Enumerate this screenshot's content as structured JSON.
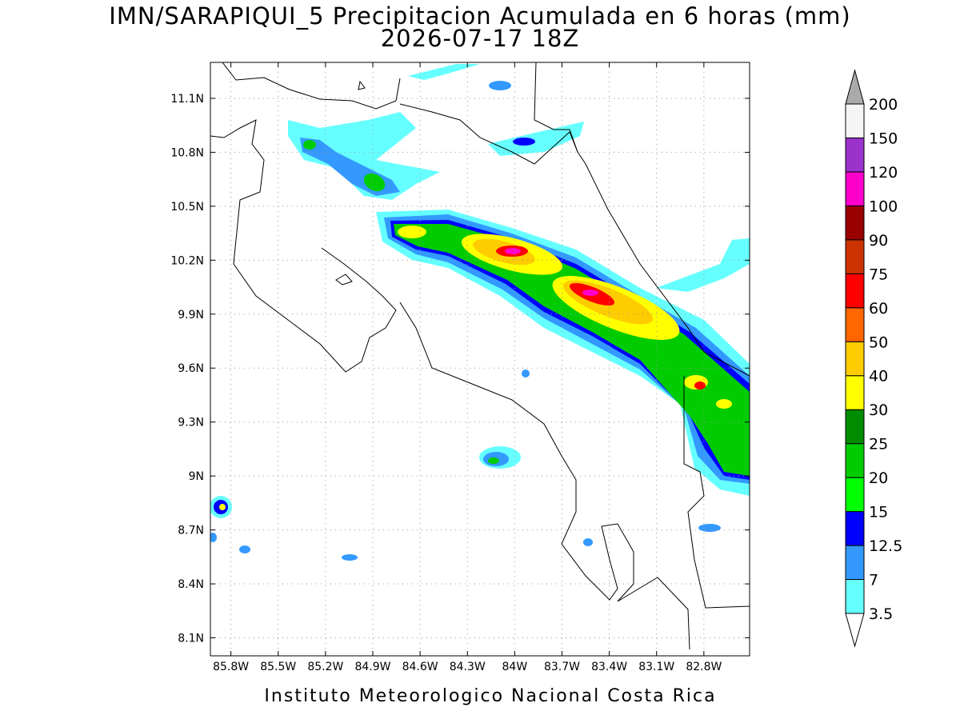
{
  "title": "IMN/SARAPIQUI_5 Precipitacion Acumulada en 6 horas (mm)",
  "subtitle": "2026-07-17 18Z",
  "footer": "Instituto Meteorologico Nacional Costa Rica",
  "map": {
    "xlim": [
      -85.93,
      -82.51
    ],
    "ylim": [
      8.0,
      11.3
    ],
    "grid": true,
    "xticks": [
      {
        "value": -85.8,
        "label": "85.8W"
      },
      {
        "value": -85.5,
        "label": "85.5W"
      },
      {
        "value": -85.2,
        "label": "85.2W"
      },
      {
        "value": -84.9,
        "label": "84.9W"
      },
      {
        "value": -84.6,
        "label": "84.6W"
      },
      {
        "value": -84.3,
        "label": "84.3W"
      },
      {
        "value": -84.0,
        "label": "84W"
      },
      {
        "value": -83.7,
        "label": "83.7W"
      },
      {
        "value": -83.4,
        "label": "83.4W"
      },
      {
        "value": -83.1,
        "label": "83.1W"
      },
      {
        "value": -82.8,
        "label": "82.8W"
      }
    ],
    "yticks": [
      {
        "value": 8.1,
        "label": "8.1N"
      },
      {
        "value": 8.4,
        "label": "8.4N"
      },
      {
        "value": 8.7,
        "label": "8.7N"
      },
      {
        "value": 9.0,
        "label": "9N"
      },
      {
        "value": 9.3,
        "label": "9.3N"
      },
      {
        "value": 9.6,
        "label": "9.6N"
      },
      {
        "value": 9.9,
        "label": "9.9N"
      },
      {
        "value": 10.2,
        "label": "10.2N"
      },
      {
        "value": 10.5,
        "label": "10.5N"
      },
      {
        "value": 10.8,
        "label": "10.8N"
      },
      {
        "value": 11.1,
        "label": "11.1N"
      }
    ]
  },
  "colorbar": {
    "levels": [
      3.5,
      7,
      12.5,
      15,
      20,
      25,
      30,
      40,
      50,
      60,
      75,
      90,
      100,
      120,
      150,
      200
    ],
    "colors": [
      "#66ffff",
      "#3399ff",
      "#0000ff",
      "#00ff00",
      "#00cc00",
      "#008c00",
      "#ffff00",
      "#ffcc00",
      "#ff6600",
      "#ff0000",
      "#cc3300",
      "#990000",
      "#ff00cc",
      "#9933cc",
      "#f5f5f5"
    ],
    "under_color": "#ffffff",
    "over_color": "#aaaaaa"
  }
}
